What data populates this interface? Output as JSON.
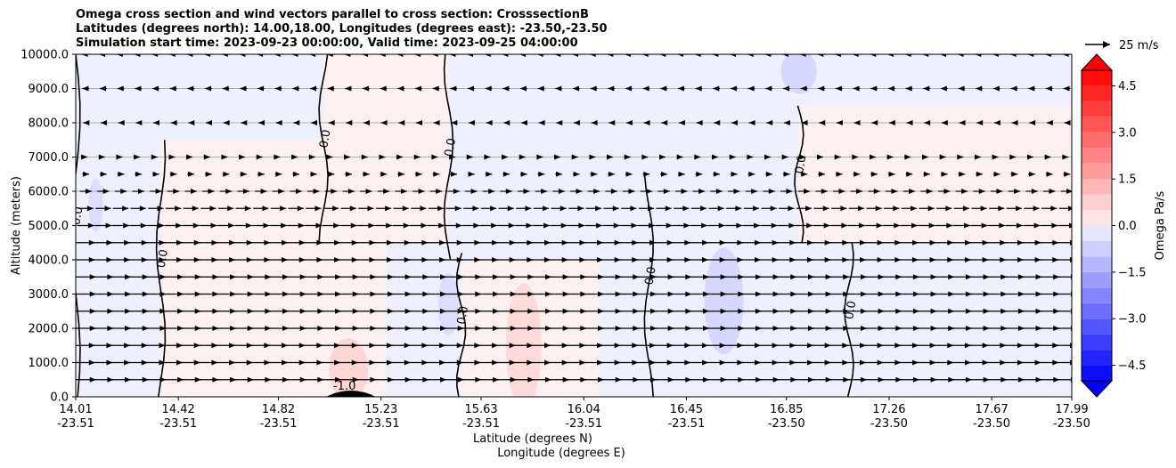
{
  "chart_data": {
    "type": "heatmap",
    "title_lines": [
      "Omega cross section and wind vectors parallel to cross section: CrosssectionB",
      "Latitudes (degrees north): 14.00,18.00, Longitudes (degrees east): -23.50,-23.50",
      "Simulation start time: 2023-09-23 00:00:00, Valid time: 2023-09-25 04:00:00"
    ],
    "ylabel": "Altitude (meters)",
    "xlabel_lat": "Latitude (degrees N)",
    "xlabel_lon": "Longitude (degrees E)",
    "ylim": [
      0,
      10000
    ],
    "yticks": [
      "0.0",
      "1000.0",
      "2000.0",
      "3000.0",
      "4000.0",
      "5000.0",
      "6000.0",
      "7000.0",
      "8000.0",
      "9000.0",
      "10000.0"
    ],
    "xlim": [
      14.01,
      17.99
    ],
    "x_ticks": [
      {
        "lat": "14.01",
        "lon": "-23.51"
      },
      {
        "lat": "14.42",
        "lon": "-23.51"
      },
      {
        "lat": "14.82",
        "lon": "-23.51"
      },
      {
        "lat": "15.23",
        "lon": "-23.51"
      },
      {
        "lat": "15.63",
        "lon": "-23.51"
      },
      {
        "lat": "16.04",
        "lon": "-23.51"
      },
      {
        "lat": "16.45",
        "lon": "-23.51"
      },
      {
        "lat": "16.85",
        "lon": "-23.50"
      },
      {
        "lat": "17.26",
        "lon": "-23.50"
      },
      {
        "lat": "17.67",
        "lon": "-23.50"
      },
      {
        "lat": "17.99",
        "lon": "-23.50"
      }
    ],
    "grid": "horizontal",
    "colorbar": {
      "label": "Omega Pa/s",
      "range": [
        -5.0,
        5.0
      ],
      "ticks": [
        "4.5",
        "3.0",
        "1.5",
        "0.0",
        "−1.5",
        "−3.0",
        "−4.5"
      ],
      "levels": 20,
      "negative_color": "#0000ff",
      "positive_color": "#ff0000",
      "extend": "both"
    },
    "vector_key": {
      "label": "25 m/s",
      "speed": 25
    },
    "contour_label": "0.0",
    "terrain_label": "-1.0",
    "regions": [
      {
        "sign": "negative",
        "x": [
          14.01,
          14.75
        ],
        "y": [
          0,
          10000
        ]
      },
      {
        "sign": "positive",
        "x": [
          14.35,
          15.25
        ],
        "y": [
          0,
          7500
        ]
      },
      {
        "sign": "positive",
        "x": [
          15.0,
          15.55
        ],
        "y": [
          4500,
          10000
        ]
      },
      {
        "sign": "positive",
        "x": [
          15.55,
          16.1
        ],
        "y": [
          0,
          4200
        ]
      },
      {
        "sign": "negative",
        "x": [
          15.5,
          16.3
        ],
        "y": [
          4000,
          10000
        ]
      },
      {
        "sign": "negative",
        "x": [
          16.3,
          16.95
        ],
        "y": [
          0,
          6500
        ]
      },
      {
        "sign": "positive",
        "x": [
          16.9,
          17.99
        ],
        "y": [
          4500,
          8500
        ]
      },
      {
        "sign": "negative",
        "x": [
          17.1,
          17.99
        ],
        "y": [
          0,
          4500
        ]
      }
    ],
    "wind_rows": [
      {
        "altitude": 500,
        "speed": 12,
        "direction": "east"
      },
      {
        "altitude": 1000,
        "speed": 11,
        "direction": "east"
      },
      {
        "altitude": 1500,
        "speed": 11,
        "direction": "east"
      },
      {
        "altitude": 2000,
        "speed": 12,
        "direction": "east"
      },
      {
        "altitude": 2500,
        "speed": 12,
        "direction": "east"
      },
      {
        "altitude": 3000,
        "speed": 12,
        "direction": "east"
      },
      {
        "altitude": 3500,
        "speed": 12,
        "direction": "east"
      },
      {
        "altitude": 4000,
        "speed": 11,
        "direction": "east"
      },
      {
        "altitude": 4500,
        "speed": 11,
        "direction": "east"
      },
      {
        "altitude": 5000,
        "speed": 10,
        "direction": "east"
      },
      {
        "altitude": 5500,
        "speed": 9,
        "direction": "east"
      },
      {
        "altitude": 6000,
        "speed": 7,
        "direction": "east"
      },
      {
        "altitude": 6500,
        "speed": 4,
        "direction": "east"
      },
      {
        "altitude": 7000,
        "speed": 2,
        "direction": "east"
      },
      {
        "altitude": 8000,
        "speed": 3,
        "direction": "west"
      },
      {
        "altitude": 9000,
        "speed": 4,
        "direction": "west"
      },
      {
        "altitude": 10000,
        "speed": 5,
        "direction": "west"
      }
    ]
  }
}
